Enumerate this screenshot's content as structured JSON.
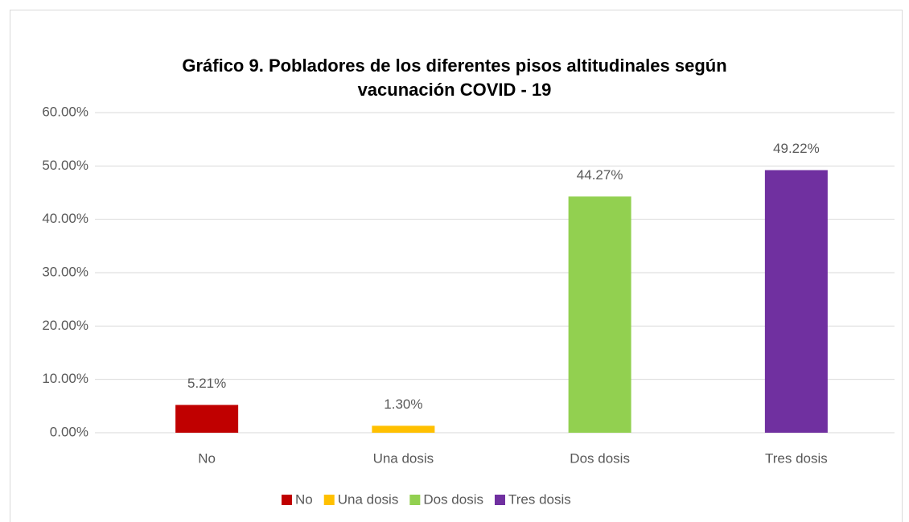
{
  "chart_data": {
    "type": "bar",
    "title": [
      "Gráfico 9. Pobladores de los diferentes pisos altitudinales según",
      "vacunación COVID - 19"
    ],
    "categories": [
      "No",
      "Una dosis",
      "Dos dosis",
      "Tres dosis"
    ],
    "values": [
      5.21,
      1.3,
      44.27,
      49.22
    ],
    "value_labels": [
      "5.21%",
      "1.30%",
      "44.27%",
      "49.22%"
    ],
    "colors": [
      "#c00000",
      "#ffc000",
      "#92d050",
      "#7030a0"
    ],
    "ylim": [
      0,
      60
    ],
    "yticks": [
      {
        "value": 0,
        "label": "0.00%"
      },
      {
        "value": 10,
        "label": "10.00%"
      },
      {
        "value": 20,
        "label": "20.00%"
      },
      {
        "value": 30,
        "label": "30.00%"
      },
      {
        "value": 40,
        "label": "40.00%"
      },
      {
        "value": 50,
        "label": "50.00%"
      },
      {
        "value": 60,
        "label": "60.00%"
      }
    ],
    "grid": true,
    "legend": "bottom"
  }
}
